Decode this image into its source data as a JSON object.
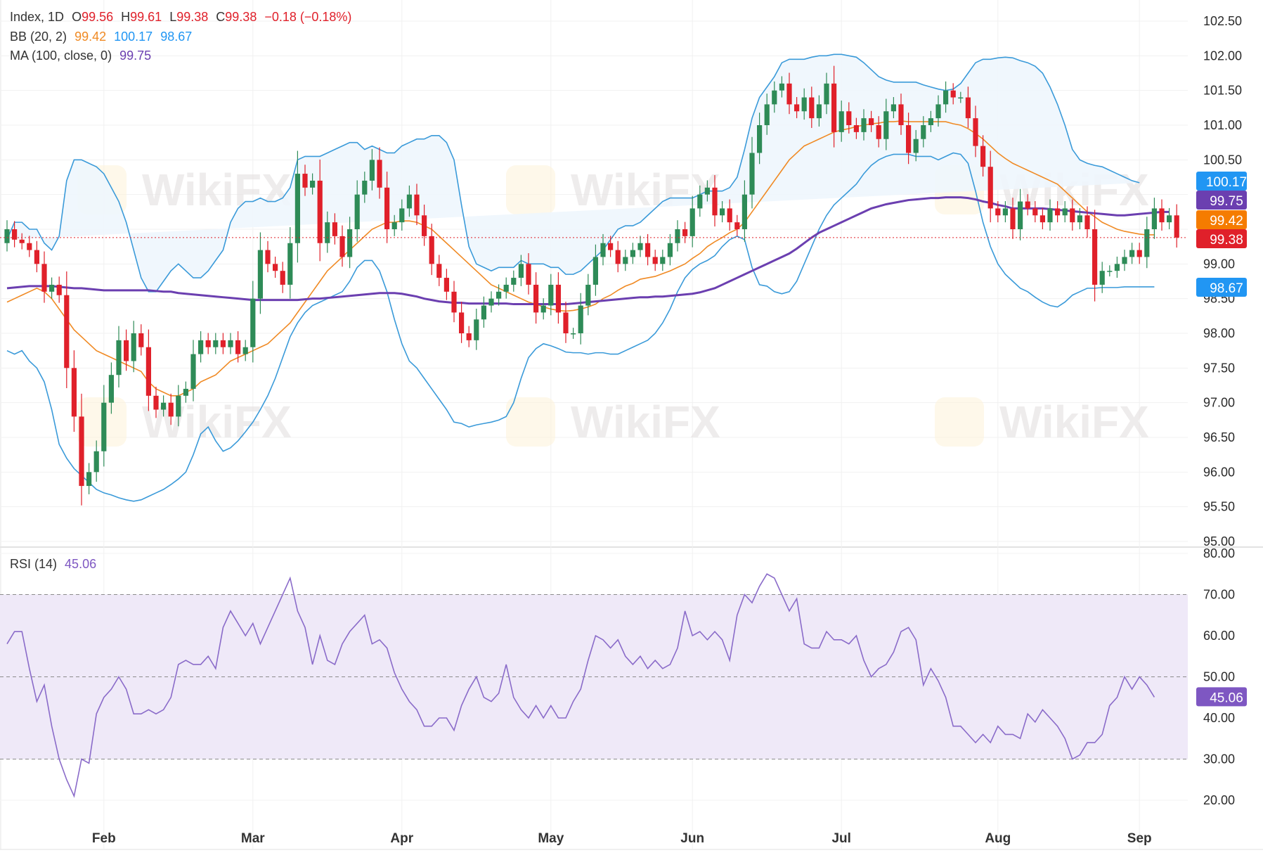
{
  "legend": {
    "main": {
      "symbol": "Index, 1D",
      "o_label": "O",
      "o": "99.56",
      "h_label": "H",
      "h": "99.61",
      "l_label": "L",
      "l": "99.38",
      "c_label": "C",
      "c": "99.38",
      "change": "−0.18 (−0.18%)"
    },
    "bb": {
      "label": "BB (20, 2)",
      "mid": "99.42",
      "upper": "100.17",
      "lower": "98.67"
    },
    "ma": {
      "label": "MA (100, close, 0)",
      "value": "99.75"
    },
    "rsi": {
      "label": "RSI (14)",
      "value": "45.06"
    }
  },
  "watermark": "WikiFX",
  "colors": {
    "up": "#2e8b57",
    "down": "#e0202a",
    "bb_band": "#3a9ad9",
    "bb_mid": "#f08a24",
    "ma": "#6b3fb0",
    "rsi": "#8a6bc9",
    "rsi_fill": "#efe9f8",
    "bb_fill": "#eef6fd"
  },
  "price_tags": [
    {
      "label": "100.17",
      "value": 100.17,
      "color": "#2196f3"
    },
    {
      "label": "99.75",
      "value": 99.75,
      "color": "#6b3fb0"
    },
    {
      "label": "99.42",
      "value": 99.42,
      "color": "#f57c00"
    },
    {
      "label": "99.38",
      "value": 99.38,
      "color": "#e0202a"
    },
    {
      "label": "98.67",
      "value": 98.67,
      "color": "#2196f3"
    }
  ],
  "rsi_tag": {
    "label": "45.06",
    "value": 45.06,
    "color": "#7e57c2"
  },
  "chart_data": {
    "type": "candlestick",
    "price_axis": {
      "min": 95.0,
      "max": 102.5,
      "ticks": [
        "95.00",
        "95.50",
        "96.00",
        "96.50",
        "97.00",
        "97.50",
        "98.00",
        "98.50",
        "99.00",
        "99.50",
        "100.00",
        "100.50",
        "101.00",
        "101.50",
        "102.00",
        "102.50"
      ]
    },
    "rsi_axis": {
      "min": 20,
      "max": 80,
      "ticks": [
        "20.00",
        "30.00",
        "40.00",
        "50.00",
        "60.00",
        "70.00",
        "80.00"
      ],
      "band": [
        30,
        70
      ],
      "mid": 50
    },
    "months": [
      {
        "label": "Feb",
        "index": 13
      },
      {
        "label": "Mar",
        "index": 33
      },
      {
        "label": "Apr",
        "index": 53
      },
      {
        "label": "May",
        "index": 73
      },
      {
        "label": "Jun",
        "index": 92
      },
      {
        "label": "Jul",
        "index": 112
      },
      {
        "label": "Aug",
        "index": 133
      },
      {
        "label": "Sep",
        "index": 152
      }
    ],
    "close_start": 99.3,
    "close": [
      99.5,
      99.35,
      99.3,
      99.2,
      99.0,
      98.6,
      98.7,
      98.55,
      97.5,
      96.8,
      95.8,
      96.0,
      96.3,
      97.0,
      97.4,
      97.9,
      97.6,
      98.0,
      97.8,
      97.1,
      96.9,
      97.0,
      96.8,
      97.1,
      97.2,
      97.7,
      97.9,
      97.8,
      97.9,
      97.8,
      97.9,
      97.7,
      97.8,
      98.5,
      99.2,
      99.0,
      98.9,
      98.7,
      99.3,
      100.3,
      100.1,
      100.2,
      99.3,
      99.6,
      99.4,
      99.1,
      99.5,
      100.0,
      100.2,
      100.5,
      100.1,
      99.5,
      99.6,
      99.8,
      100.0,
      99.7,
      99.4,
      99.0,
      98.8,
      98.6,
      98.3,
      98.0,
      97.9,
      98.2,
      98.4,
      98.5,
      98.6,
      98.7,
      98.8,
      99.0,
      98.7,
      98.3,
      98.4,
      98.7,
      98.3,
      98.0,
      98.0,
      98.4,
      98.7,
      99.1,
      99.3,
      99.2,
      99.0,
      99.1,
      99.2,
      99.3,
      99.1,
      99.0,
      99.1,
      99.3,
      99.5,
      99.4,
      99.8,
      100.0,
      100.1,
      99.7,
      99.8,
      99.6,
      99.5,
      100.0,
      100.6,
      101.0,
      101.3,
      101.5,
      101.6,
      101.3,
      101.2,
      101.4,
      101.1,
      101.3,
      101.6,
      100.9,
      101.2,
      101.0,
      100.9,
      101.1,
      101.0,
      100.8,
      101.2,
      101.3,
      101.0,
      100.6,
      100.8,
      101.0,
      101.1,
      101.3,
      101.5,
      101.4,
      101.4,
      101.1,
      100.7,
      100.4,
      99.8,
      99.7,
      99.8,
      99.5,
      99.9,
      99.8,
      99.7,
      99.6,
      99.8,
      99.7,
      99.8,
      99.6,
      99.7,
      99.5,
      98.7,
      98.9,
      98.9,
      99.0,
      99.1,
      99.2,
      99.1,
      99.5,
      99.8,
      99.6,
      99.7,
      99.38
    ],
    "rsi": [
      58,
      61,
      61,
      52,
      44,
      48,
      38,
      30,
      25,
      21,
      30,
      29,
      41,
      45,
      47,
      50,
      47,
      41,
      41,
      42,
      41,
      42,
      45,
      53,
      54,
      53,
      53,
      55,
      52,
      62,
      66,
      63,
      60,
      63,
      58,
      62,
      66,
      70,
      74,
      66,
      62,
      53,
      60,
      54,
      53,
      58,
      61,
      63,
      65,
      58,
      59,
      57,
      51,
      47,
      44,
      42,
      38,
      38,
      40,
      40,
      37,
      43,
      47,
      50,
      45,
      44,
      46,
      53,
      45,
      42,
      40,
      43,
      40,
      43,
      40,
      40,
      44,
      47,
      54,
      60,
      59,
      57,
      59,
      55,
      53,
      55,
      52,
      54,
      52,
      53,
      57,
      66,
      60,
      61,
      59,
      61,
      59,
      54,
      65,
      70,
      68,
      72,
      75,
      74,
      70,
      66,
      69,
      58,
      57,
      57,
      61,
      59,
      59,
      58,
      60,
      54,
      50,
      52,
      53,
      56,
      61,
      62,
      59,
      48,
      52,
      49,
      45,
      38,
      38,
      36,
      34,
      36,
      34,
      38,
      36,
      36,
      35,
      41,
      39,
      42,
      40,
      38,
      35,
      30,
      31,
      34,
      34,
      36,
      43,
      45,
      50,
      47,
      50,
      48,
      45.06
    ],
    "bb_mid": [
      98.45,
      98.5,
      98.55,
      98.6,
      98.65,
      98.6,
      98.5,
      98.35,
      98.2,
      98.05,
      97.95,
      97.85,
      97.75,
      97.7,
      97.65,
      97.6,
      97.55,
      97.5,
      97.45,
      97.3,
      97.2,
      97.15,
      97.1,
      97.1,
      97.15,
      97.2,
      97.3,
      97.35,
      97.4,
      97.5,
      97.6,
      97.65,
      97.7,
      97.75,
      97.8,
      97.85,
      97.95,
      98.05,
      98.15,
      98.3,
      98.45,
      98.6,
      98.75,
      98.9,
      99.0,
      99.1,
      99.2,
      99.3,
      99.4,
      99.5,
      99.55,
      99.6,
      99.6,
      99.62,
      99.62,
      99.6,
      99.55,
      99.5,
      99.4,
      99.3,
      99.2,
      99.1,
      99.0,
      98.9,
      98.8,
      98.7,
      98.65,
      98.6,
      98.55,
      98.5,
      98.45,
      98.42,
      98.38,
      98.35,
      98.33,
      98.32,
      98.33,
      98.35,
      98.38,
      98.42,
      98.5,
      98.55,
      98.62,
      98.68,
      98.72,
      98.78,
      98.8,
      98.82,
      98.86,
      98.9,
      98.95,
      99.0,
      99.08,
      99.15,
      99.25,
      99.32,
      99.38,
      99.45,
      99.5,
      99.6,
      99.75,
      99.9,
      100.05,
      100.2,
      100.35,
      100.5,
      100.6,
      100.7,
      100.75,
      100.8,
      100.85,
      100.9,
      100.93,
      100.95,
      100.98,
      101.0,
      101.02,
      101.03,
      101.05,
      101.05,
      101.06,
      101.05,
      101.05,
      101.05,
      101.05,
      101.05,
      101.05,
      101.02,
      101.0,
      100.95,
      100.88,
      100.8,
      100.7,
      100.6,
      100.52,
      100.45,
      100.4,
      100.35,
      100.3,
      100.25,
      100.2,
      100.15,
      100.05,
      99.95,
      99.85,
      99.75,
      99.68,
      99.6,
      99.55,
      99.5,
      99.47,
      99.45,
      99.43,
      99.42,
      99.42
    ],
    "bb_upper": [
      99.35,
      99.6,
      99.6,
      99.5,
      99.5,
      99.3,
      99.2,
      99.4,
      100.2,
      100.5,
      100.5,
      100.45,
      100.4,
      100.3,
      100.1,
      99.9,
      99.6,
      99.2,
      98.8,
      98.6,
      98.6,
      98.75,
      98.9,
      99.0,
      98.9,
      98.8,
      98.8,
      98.9,
      99.05,
      99.2,
      99.6,
      99.8,
      99.9,
      99.9,
      99.95,
      99.9,
      99.9,
      99.95,
      100.1,
      100.5,
      100.55,
      100.55,
      100.55,
      100.6,
      100.65,
      100.7,
      100.75,
      100.75,
      100.65,
      100.7,
      100.65,
      100.6,
      100.6,
      100.7,
      100.75,
      100.8,
      100.8,
      100.85,
      100.85,
      100.75,
      100.5,
      99.85,
      99.25,
      99.0,
      98.95,
      98.9,
      98.95,
      98.95,
      98.95,
      99.05,
      99.0,
      99.0,
      99.0,
      98.95,
      98.95,
      98.85,
      98.85,
      98.9,
      99.0,
      99.1,
      99.2,
      99.35,
      99.5,
      99.55,
      99.55,
      99.6,
      99.7,
      99.8,
      99.9,
      99.95,
      99.95,
      99.95,
      99.95,
      100.0,
      100.05,
      100.05,
      100.05,
      100.1,
      100.25,
      100.65,
      101.1,
      101.4,
      101.55,
      101.7,
      101.9,
      101.95,
      101.95,
      101.95,
      101.98,
      102.0,
      102.0,
      102.02,
      102.02,
      102.0,
      101.98,
      101.9,
      101.8,
      101.7,
      101.65,
      101.62,
      101.62,
      101.62,
      101.62,
      101.58,
      101.55,
      101.52,
      101.5,
      101.52,
      101.6,
      101.75,
      101.9,
      101.95,
      101.95,
      101.97,
      101.98,
      101.97,
      101.93,
      101.9,
      101.85,
      101.75,
      101.55,
      101.3,
      101.0,
      100.65,
      100.5,
      100.45,
      100.42,
      100.4,
      100.35,
      100.3,
      100.25,
      100.2,
      100.17
    ],
    "bb_lower": [
      97.75,
      97.7,
      97.75,
      97.6,
      97.5,
      97.3,
      96.9,
      96.4,
      96.2,
      96.05,
      95.95,
      95.85,
      95.75,
      95.7,
      95.67,
      95.63,
      95.6,
      95.58,
      95.6,
      95.65,
      95.7,
      95.75,
      95.82,
      95.9,
      96.0,
      96.25,
      96.55,
      96.65,
      96.45,
      96.3,
      96.35,
      96.45,
      96.58,
      96.72,
      96.9,
      97.1,
      97.35,
      97.65,
      97.95,
      98.15,
      98.3,
      98.4,
      98.45,
      98.5,
      98.55,
      98.6,
      98.75,
      98.95,
      99.05,
      99.05,
      98.9,
      98.6,
      98.2,
      97.85,
      97.6,
      97.5,
      97.35,
      97.2,
      97.05,
      96.9,
      96.72,
      96.7,
      96.65,
      96.68,
      96.7,
      96.72,
      96.75,
      96.8,
      97.0,
      97.35,
      97.65,
      97.78,
      97.85,
      97.82,
      97.78,
      97.73,
      97.72,
      97.72,
      97.7,
      97.72,
      97.72,
      97.7,
      97.7,
      97.75,
      97.8,
      97.85,
      97.9,
      98.0,
      98.15,
      98.35,
      98.6,
      98.8,
      98.92,
      99.0,
      99.05,
      99.12,
      99.25,
      99.35,
      99.4,
      99.35,
      98.95,
      98.7,
      98.68,
      98.6,
      98.57,
      98.6,
      98.75,
      99.0,
      99.25,
      99.5,
      99.7,
      99.85,
      99.95,
      100.05,
      100.15,
      100.3,
      100.42,
      100.5,
      100.55,
      100.58,
      100.58,
      100.58,
      100.55,
      100.55,
      100.55,
      100.5,
      100.55,
      100.6,
      100.58,
      100.45,
      100.05,
      99.6,
      99.25,
      99.0,
      98.85,
      98.75,
      98.65,
      98.6,
      98.52,
      98.45,
      98.4,
      98.38,
      98.45,
      98.55,
      98.6,
      98.65,
      98.65,
      98.66,
      98.66,
      98.66,
      98.67,
      98.67,
      98.67,
      98.67,
      98.67
    ],
    "ma100": [
      98.65,
      98.66,
      98.67,
      98.68,
      98.68,
      98.68,
      98.68,
      98.67,
      98.66,
      98.65,
      98.65,
      98.64,
      98.63,
      98.62,
      98.62,
      98.62,
      98.62,
      98.62,
      98.62,
      98.62,
      98.61,
      98.6,
      98.6,
      98.58,
      98.57,
      98.56,
      98.55,
      98.54,
      98.53,
      98.52,
      98.51,
      98.5,
      98.49,
      98.48,
      98.48,
      98.48,
      98.48,
      98.48,
      98.48,
      98.48,
      98.49,
      98.5,
      98.5,
      98.51,
      98.52,
      98.53,
      98.54,
      98.55,
      98.56,
      98.57,
      98.58,
      98.58,
      98.58,
      98.57,
      98.55,
      98.53,
      98.5,
      98.48,
      98.46,
      98.45,
      98.44,
      98.44,
      98.43,
      98.43,
      98.43,
      98.43,
      98.43,
      98.43,
      98.42,
      98.42,
      98.42,
      98.42,
      98.42,
      98.42,
      98.42,
      98.42,
      98.43,
      98.44,
      98.45,
      98.46,
      98.47,
      98.48,
      98.49,
      98.5,
      98.51,
      98.52,
      98.52,
      98.53,
      98.53,
      98.54,
      98.55,
      98.56,
      98.57,
      98.59,
      98.62,
      98.65,
      98.7,
      98.75,
      98.8,
      98.85,
      98.9,
      98.95,
      99.0,
      99.05,
      99.1,
      99.15,
      99.22,
      99.3,
      99.38,
      99.45,
      99.5,
      99.55,
      99.6,
      99.65,
      99.7,
      99.75,
      99.8,
      99.83,
      99.86,
      99.88,
      99.9,
      99.92,
      99.93,
      99.94,
      99.95,
      99.95,
      99.96,
      99.96,
      99.96,
      99.95,
      99.93,
      99.9,
      99.88,
      99.85,
      99.83,
      99.8,
      99.8,
      99.8,
      99.8,
      99.8,
      99.79,
      99.78,
      99.77,
      99.76,
      99.75,
      99.74,
      99.73,
      99.72,
      99.71,
      99.7,
      99.7,
      99.71,
      99.72,
      99.73,
      99.74,
      99.75,
      99.75
    ]
  }
}
